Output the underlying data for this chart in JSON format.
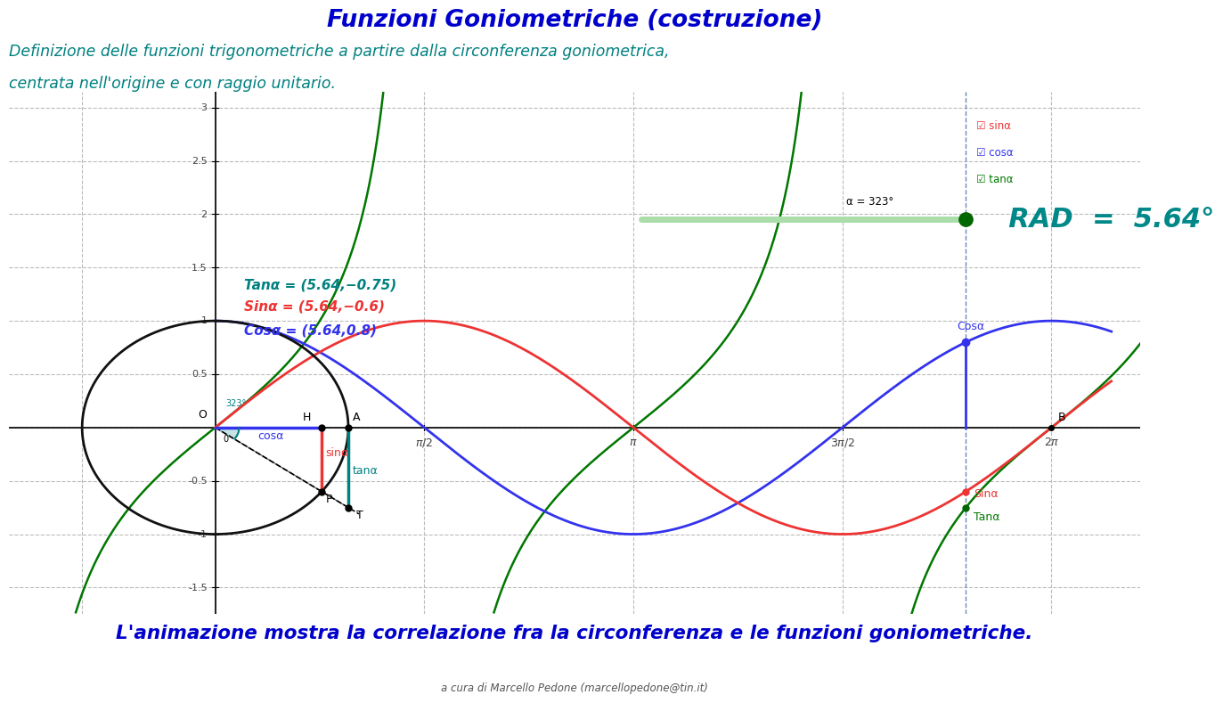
{
  "title": "Funzioni Goniometriche (costruzione)",
  "subtitle_line1": "Definizione delle funzioni trigonometriche a partire dalla circonferenza goniometrica,",
  "subtitle_line2": "centrata nell'origine e con raggio unitario.",
  "rad_label": "RAD  =  5.64",
  "alpha_deg": 323,
  "alpha_rad": 5.64,
  "cos_alpha": 0.8,
  "sin_alpha": -0.6,
  "tan_alpha": -0.75,
  "annotation_tan": "Tanα = (5.64,−0.75)",
  "annotation_sin": "Sinα = (5.64,−0.6)",
  "annotation_cos": "Cosα = (5.64,0.8)",
  "bottom_text": "L'animazione mostra la correlazione fra la circonferenza e le funzioni goniometriche.",
  "credit_text": "a cura di Marcello Pedone (marcellopedone@tin.it)",
  "bg_color": "#ffffff",
  "grid_color": "#bbbbbb",
  "title_color": "#0000cc",
  "subtitle_color": "#008080",
  "sin_color": "#ee3333",
  "cos_color": "#3333ee",
  "tan_color": "#007700",
  "circle_color": "#111111",
  "axis_color": "#111111",
  "xlim_left": -1.55,
  "xlim_right": 6.95,
  "ylim_bottom": -1.75,
  "ylim_top": 3.15,
  "slider_color": "#aaddaa",
  "slider_dot_color": "#006600",
  "cos_point_color": "#0000aa",
  "sin_point_color": "#cc0000",
  "tan_point_color": "#006600",
  "arc_fill_color": "#99cccc",
  "arc_color": "#008080"
}
